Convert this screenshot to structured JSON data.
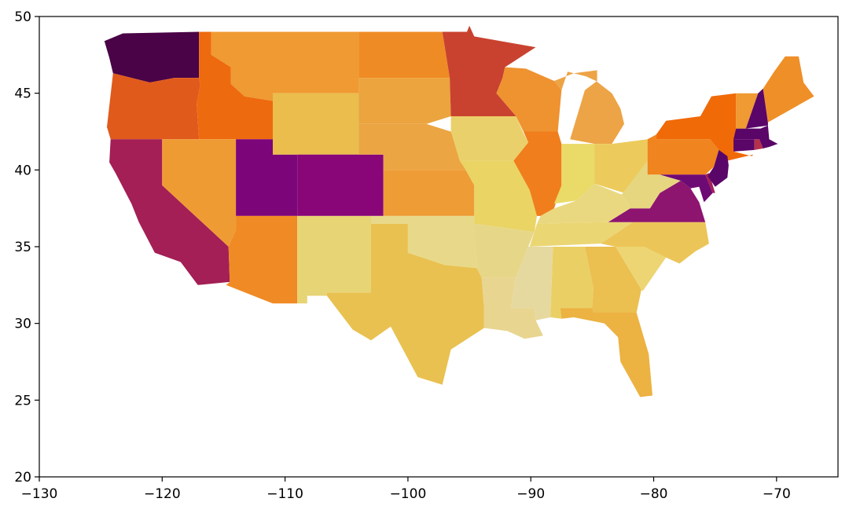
{
  "chart_data": {
    "type": "choropleth",
    "title": "",
    "xlabel": "",
    "ylabel": "",
    "xlim": [
      -130,
      -65
    ],
    "ylim": [
      20,
      50
    ],
    "xticks": [
      -130,
      -120,
      -110,
      -100,
      -90,
      -80,
      -70
    ],
    "yticks": [
      20,
      25,
      30,
      35,
      40,
      45,
      50
    ],
    "xtick_labels": [
      "−130",
      "−120",
      "−110",
      "−100",
      "−90",
      "−80",
      "−70"
    ],
    "ytick_labels": [
      "20",
      "25",
      "30",
      "35",
      "40",
      "45",
      "50"
    ],
    "colormap": "inferno_r",
    "regions": [
      {
        "name": "Washington",
        "color": "#4a0346"
      },
      {
        "name": "Oregon",
        "color": "#e05a1c"
      },
      {
        "name": "California",
        "color": "#a31f55"
      },
      {
        "name": "Idaho",
        "color": "#ee6a0e"
      },
      {
        "name": "Nevada",
        "color": "#ef9b34"
      },
      {
        "name": "Utah",
        "color": "#7d057a"
      },
      {
        "name": "Arizona",
        "color": "#f08a24"
      },
      {
        "name": "Montana",
        "color": "#ef9a32"
      },
      {
        "name": "Wyoming",
        "color": "#eabd4c"
      },
      {
        "name": "Colorado",
        "color": "#880678"
      },
      {
        "name": "New Mexico",
        "color": "#e7d474"
      },
      {
        "name": "North Dakota",
        "color": "#ef8b24"
      },
      {
        "name": "South Dakota",
        "color": "#eba43e"
      },
      {
        "name": "Nebraska",
        "color": "#eba542"
      },
      {
        "name": "Kansas",
        "color": "#ee9c35"
      },
      {
        "name": "Oklahoma",
        "color": "#e8d98a"
      },
      {
        "name": "Texas",
        "color": "#e9c150"
      },
      {
        "name": "Minnesota",
        "color": "#c9422f"
      },
      {
        "name": "Iowa",
        "color": "#ead06a"
      },
      {
        "name": "Missouri",
        "color": "#e9d464"
      },
      {
        "name": "Arkansas",
        "color": "#e6d788"
      },
      {
        "name": "Louisiana",
        "color": "#e8d590"
      },
      {
        "name": "Wisconsin",
        "color": "#ef9230"
      },
      {
        "name": "Illinois",
        "color": "#f07e1c"
      },
      {
        "name": "Michigan",
        "color": "#eda446"
      },
      {
        "name": "Indiana",
        "color": "#eada68"
      },
      {
        "name": "Ohio",
        "color": "#eccb5c"
      },
      {
        "name": "Kentucky",
        "color": "#e9d880"
      },
      {
        "name": "Tennessee",
        "color": "#ebd674"
      },
      {
        "name": "Mississippi",
        "color": "#e6d9a0"
      },
      {
        "name": "Alabama",
        "color": "#ead064"
      },
      {
        "name": "Georgia",
        "color": "#ebbf50"
      },
      {
        "name": "Florida",
        "color": "#ecb242"
      },
      {
        "name": "South Carolina",
        "color": "#ecd572"
      },
      {
        "name": "North Carolina",
        "color": "#ecc558"
      },
      {
        "name": "Virginia",
        "color": "#8d1570"
      },
      {
        "name": "West Virginia",
        "color": "#e7d680"
      },
      {
        "name": "Pennsylvania",
        "color": "#f0841e"
      },
      {
        "name": "New York",
        "color": "#f06a08"
      },
      {
        "name": "Maryland",
        "color": "#6e0a74"
      },
      {
        "name": "Delaware",
        "color": "#a31f55"
      },
      {
        "name": "New Jersey",
        "color": "#5a0568"
      },
      {
        "name": "Connecticut",
        "color": "#5a0568"
      },
      {
        "name": "Rhode Island",
        "color": "#b5304a"
      },
      {
        "name": "Massachusetts",
        "color": "#5a0568"
      },
      {
        "name": "Vermont",
        "color": "#ef9a32"
      },
      {
        "name": "New Hampshire",
        "color": "#5a0568"
      },
      {
        "name": "Maine",
        "color": "#ef8f28"
      }
    ]
  }
}
